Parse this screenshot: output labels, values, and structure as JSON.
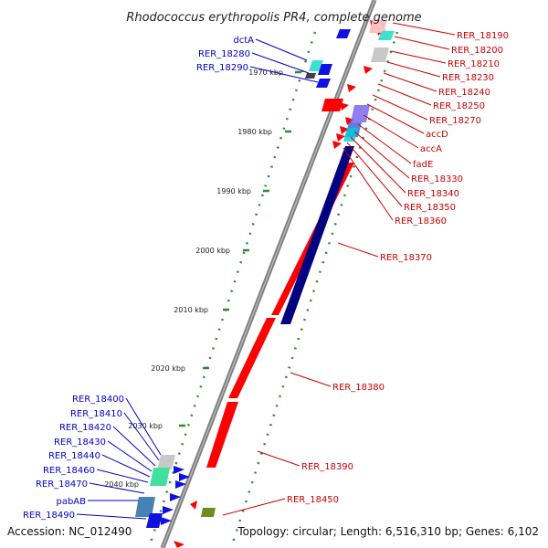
{
  "title": "Rhodococcus erythropolis PR4, complete genome",
  "footer": {
    "accession": "Accession: NC_012490",
    "summary": "Topology: circular; Length: 6,516,310 bp; Genes: 6,102"
  },
  "scale_ticks": [
    "1970 kbp",
    "1980 kbp",
    "1990 kbp",
    "2000 kbp",
    "2010 kbp",
    "2020 kbp",
    "2030 kbp",
    "2040 kbp"
  ],
  "forward_genes": [
    "RER_18190",
    "RER_18200",
    "RER_18210",
    "RER_18230",
    "RER_18240",
    "RER_18250",
    "RER_18270",
    "accD",
    "accA",
    "fadE",
    "RER_18330",
    "RER_18340",
    "RER_18350",
    "RER_18360",
    "RER_18370",
    "RER_18380",
    "RER_18390",
    "RER_18450"
  ],
  "reverse_genes": [
    "dctA",
    "RER_18280",
    "RER_18290",
    "RER_18400",
    "RER_18410",
    "RER_18420",
    "RER_18430",
    "RER_18440",
    "RER_18460",
    "RER_18470",
    "pabAB",
    "RER_18490"
  ],
  "colors": {
    "forward": "#ff0000",
    "reverse": "#000080",
    "forward_label": "#cc0000",
    "reverse_label": "#0000cc",
    "backbone": "#808080",
    "tick": "#2e8b2e"
  }
}
